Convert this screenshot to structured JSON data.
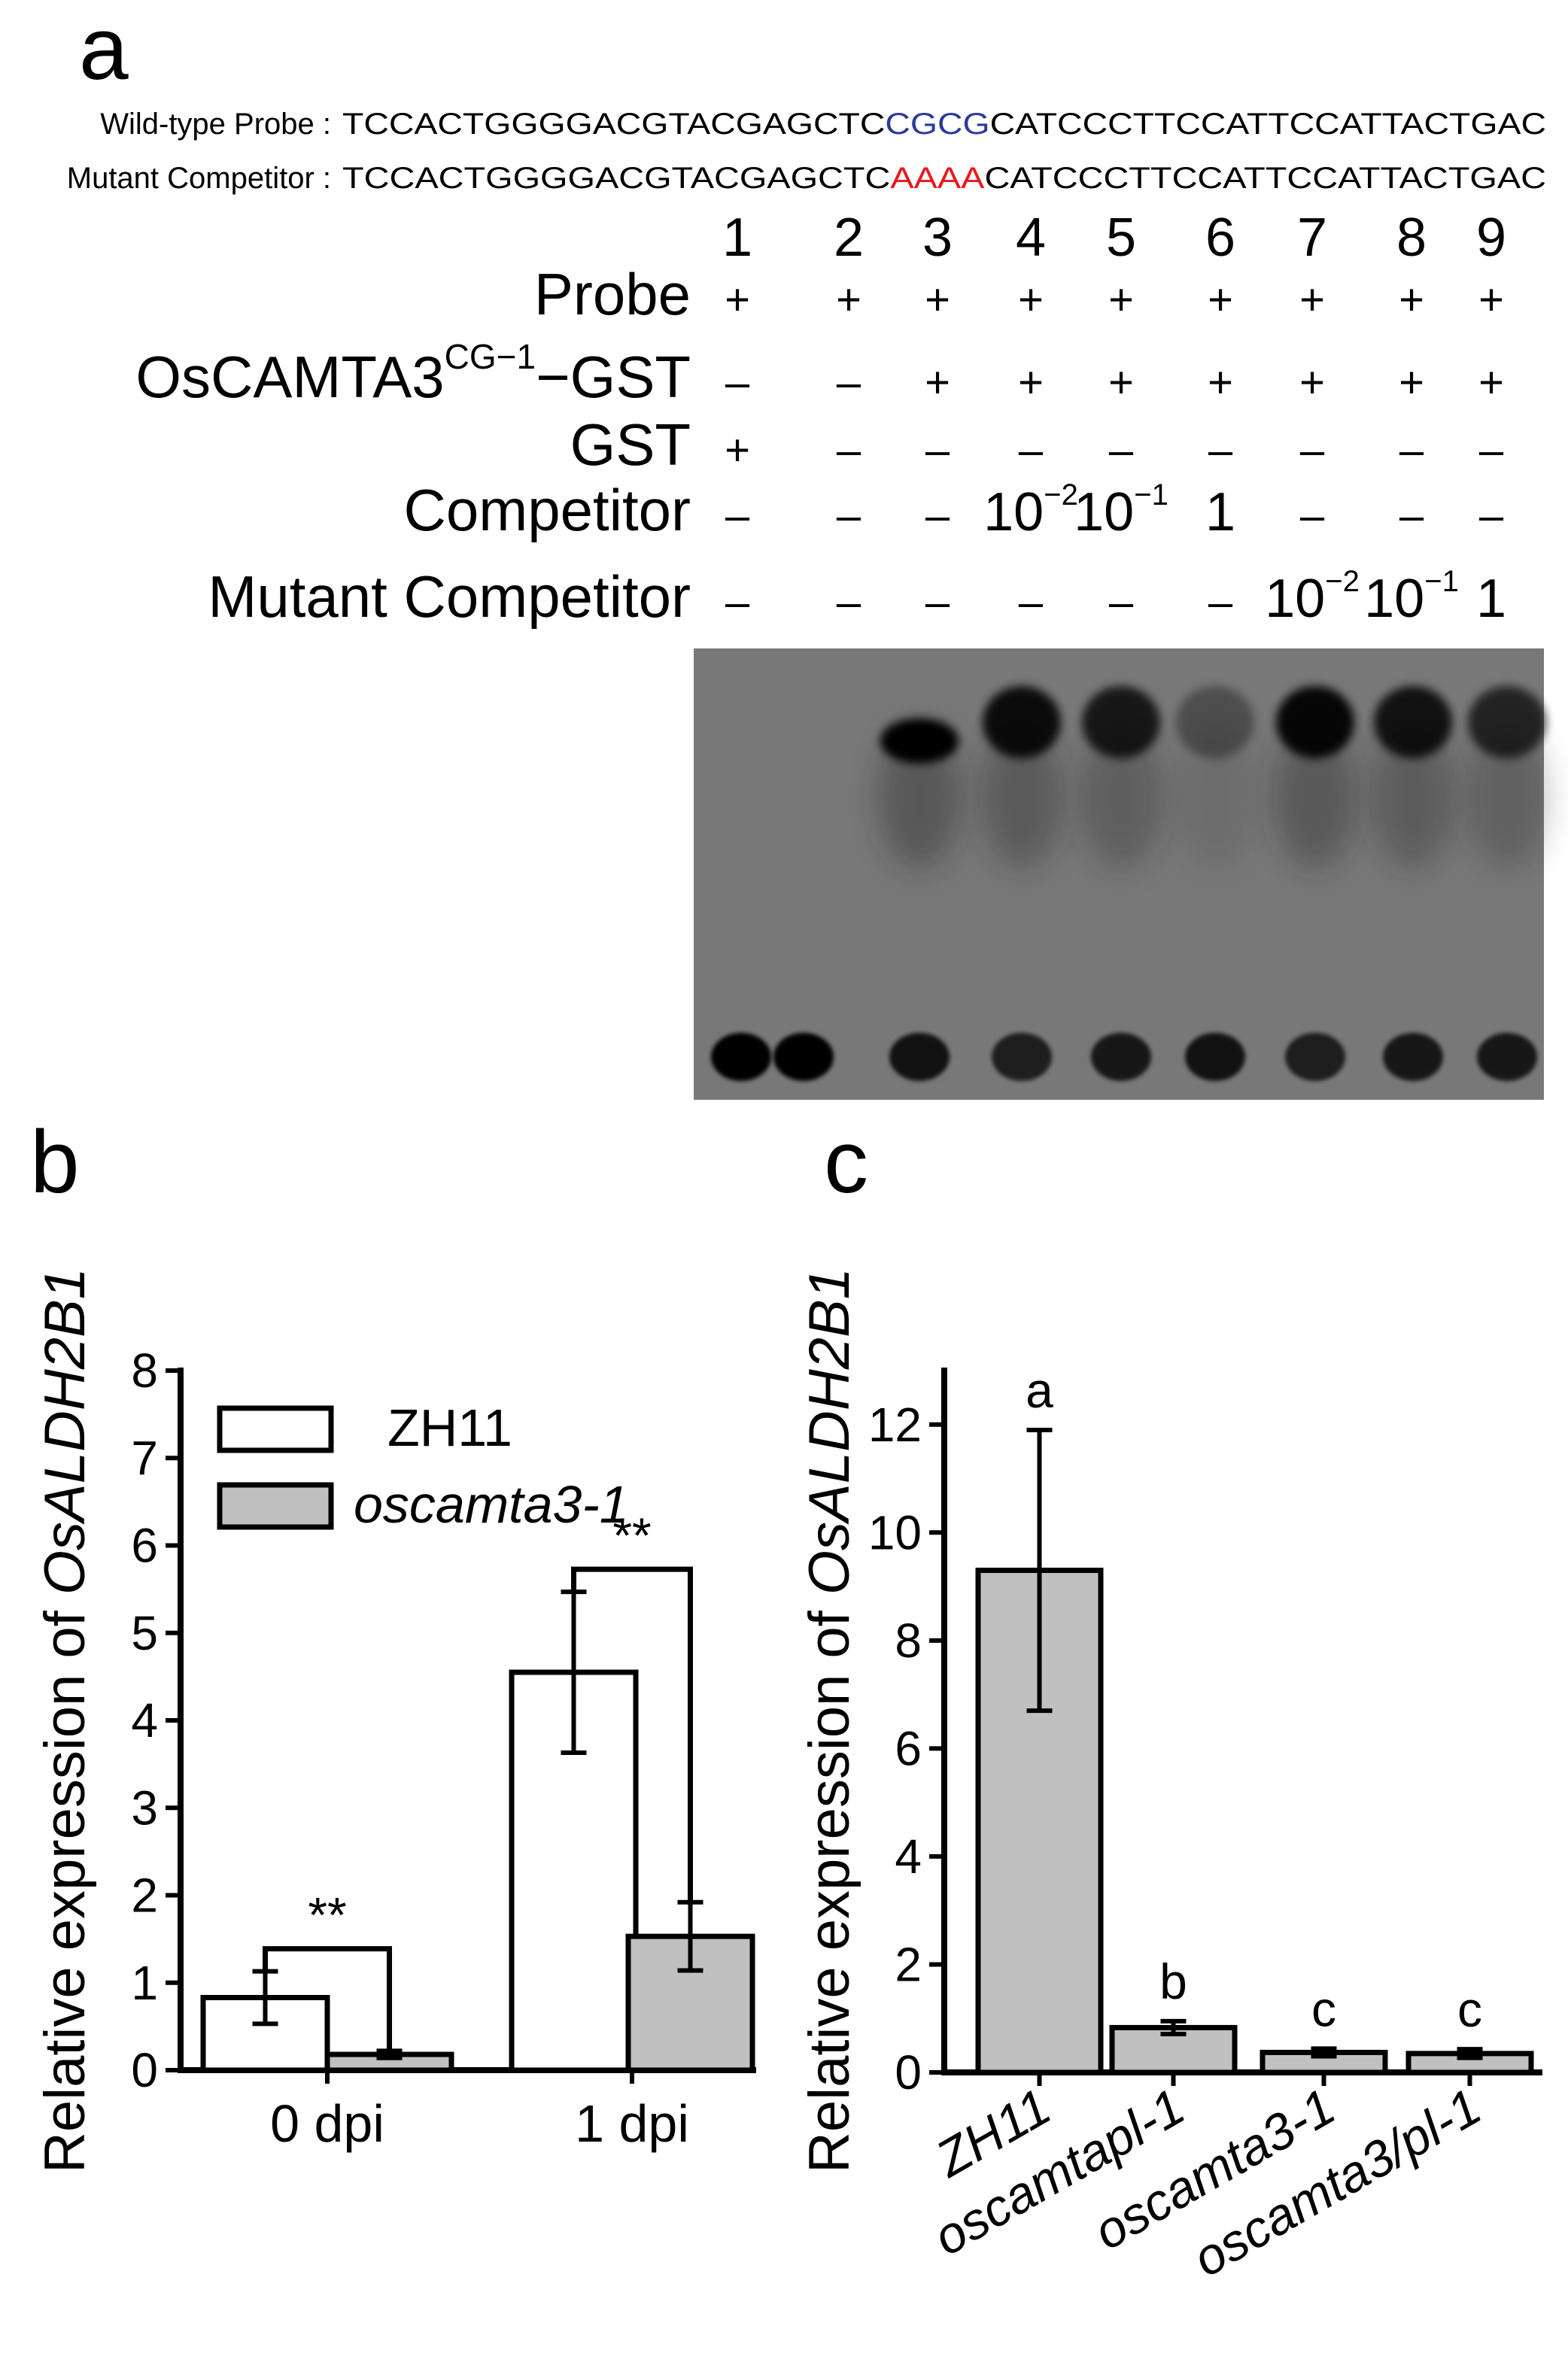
{
  "panel_a": {
    "panel_letter": "a",
    "wild_type_label": "Wild-type Probe :",
    "wild_type_seq": {
      "pre": "TCCACTGGGGACGTACGAGCTC",
      "mid": "CGCG",
      "post": "CATCCCTTCCATTCCATTACTGAC"
    },
    "mutant_label": "Mutant Competitor :",
    "mutant_seq": {
      "pre": "TCCACTGGGGACGTACGAGCTC",
      "mid": "AAAA",
      "post": "CATCCCTTCCATTCCATTACTGAC"
    },
    "wild_type_highlight_color": "#2b3a9a",
    "mutant_highlight_color": "#e8191d",
    "lane_numbers": [
      "1",
      "2",
      "3",
      "4",
      "5",
      "6",
      "7",
      "8",
      "9"
    ],
    "rows": [
      {
        "label": "Probe",
        "values": [
          "+",
          "+",
          "+",
          "+",
          "+",
          "+",
          "+",
          "+",
          "+"
        ]
      },
      {
        "label": "OsCAMTA3",
        "label_sup": "CG−1",
        "label_suffix": "−GST",
        "values": [
          "–",
          "–",
          "+",
          "+",
          "+",
          "+",
          "+",
          "+",
          "+"
        ]
      },
      {
        "label": "GST",
        "values": [
          "+",
          "–",
          "–",
          "–",
          "–",
          "–",
          "–",
          "–",
          "–"
        ]
      },
      {
        "label": "Competitor",
        "values": [
          "–",
          "–",
          "–",
          "10",
          "10",
          "1",
          "–",
          "–",
          "–"
        ],
        "value_sup": [
          null,
          null,
          null,
          "−2",
          "−1",
          null,
          null,
          null,
          null
        ]
      },
      {
        "label": "Mutant Competitor",
        "values": [
          "–",
          "–",
          "–",
          "–",
          "–",
          "–",
          "10",
          "10",
          "1"
        ],
        "value_sup": [
          null,
          null,
          null,
          null,
          null,
          null,
          "−2",
          "−1",
          null
        ]
      }
    ],
    "gel_shift_band_intensity": [
      0,
      0,
      1.0,
      0.9,
      0.8,
      0.35,
      0.95,
      0.85,
      0.7
    ],
    "gel_free_probe_intensity": [
      1.0,
      1.0,
      0.85,
      0.75,
      0.8,
      0.85,
      0.75,
      0.8,
      0.8
    ]
  },
  "chart_data": [
    {
      "panel": "b",
      "type": "bar",
      "categories": [
        "0 dpi",
        "1 dpi"
      ],
      "ylabel_prefix": "Relative expression of ",
      "ylabel_gene": "OsALDH2B1",
      "ylim": [
        0,
        8
      ],
      "yticks": [
        "0",
        "1",
        "2",
        "3",
        "4",
        "5",
        "6",
        "7",
        "8"
      ],
      "series": [
        {
          "name": "ZH11",
          "values": [
            0.83,
            4.55
          ],
          "errors": [
            0.3,
            0.92
          ],
          "color": "#ffffff"
        },
        {
          "name": "oscamta3-1",
          "values": [
            0.18,
            1.53
          ],
          "errors": [
            0.04,
            0.39
          ],
          "color": "#c0c0c0"
        }
      ],
      "significance": [
        "**",
        "**"
      ],
      "legend_position": "top-left"
    },
    {
      "panel": "c",
      "type": "bar",
      "categories": [
        "ZH11",
        "oscamtapl-1",
        "oscamta3-1",
        "oscamta3/pl-1"
      ],
      "values": [
        9.3,
        0.83,
        0.37,
        0.35
      ],
      "errors": [
        2.6,
        0.12,
        0.07,
        0.08
      ],
      "letters": [
        "a",
        "b",
        "c",
        "c"
      ],
      "ylabel_prefix": "Relative expression of ",
      "ylabel_gene": "OsALDH2B1",
      "ylim": [
        0,
        13
      ],
      "yticks": [
        "0",
        "2",
        "4",
        "6",
        "8",
        "10",
        "12"
      ],
      "bar_color": "#c0c0c0"
    }
  ]
}
